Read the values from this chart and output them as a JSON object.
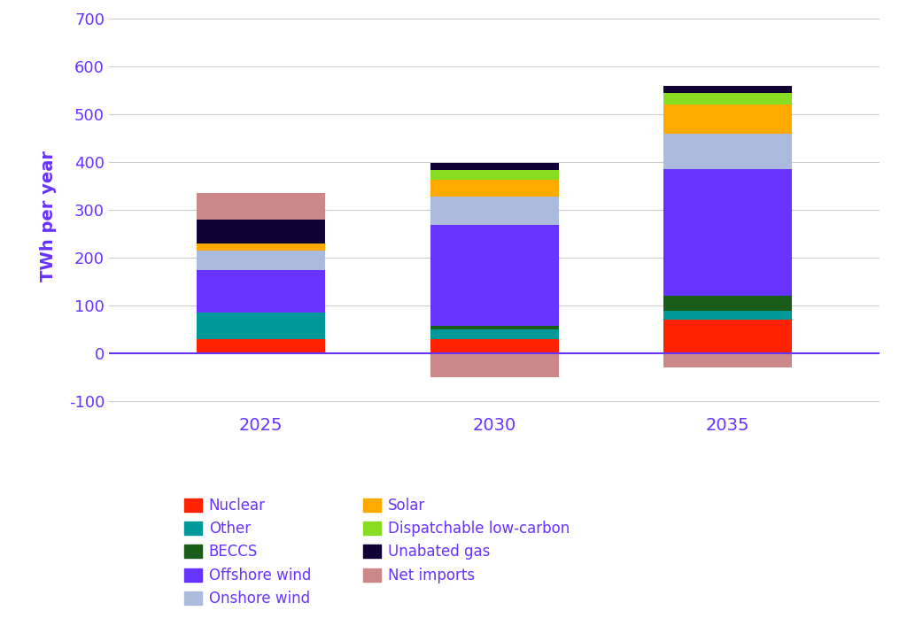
{
  "years": [
    2025,
    2030,
    2035
  ],
  "sources": [
    {
      "name": "Nuclear",
      "color": "#ff2200",
      "values": [
        30,
        30,
        70
      ]
    },
    {
      "name": "Other",
      "color": "#009999",
      "values": [
        55,
        20,
        20
      ]
    },
    {
      "name": "BECCS",
      "color": "#1a5c1a",
      "values": [
        0,
        8,
        30
      ]
    },
    {
      "name": "Offshore wind",
      "color": "#6633ff",
      "values": [
        90,
        210,
        265
      ]
    },
    {
      "name": "Onshore wind",
      "color": "#aabbdd",
      "values": [
        40,
        60,
        75
      ]
    },
    {
      "name": "Solar",
      "color": "#ffaa00",
      "values": [
        15,
        35,
        60
      ]
    },
    {
      "name": "Dispatchable low-carbon",
      "color": "#88dd22",
      "values": [
        0,
        20,
        25
      ]
    },
    {
      "name": "Unabated gas",
      "color": "#110033",
      "values": [
        50,
        15,
        15
      ]
    },
    {
      "name": "Net imports positive",
      "color": "#cc8888",
      "values": [
        55,
        0,
        0
      ]
    }
  ],
  "negative_sources": [
    {
      "name": "Net imports",
      "color": "#cc8888",
      "values": [
        0,
        -50,
        -30
      ]
    }
  ],
  "ylabel": "TWh per year",
  "ylim": [
    -125,
    700
  ],
  "yticks": [
    -100,
    0,
    100,
    200,
    300,
    400,
    500,
    600,
    700
  ],
  "background_color": "#ffffff",
  "axis_color": "#6633ff",
  "text_color": "#6633ff",
  "bar_width": 0.55,
  "legend_order": [
    "Nuclear",
    "Other",
    "BECCS",
    "Offshore wind",
    "Onshore wind",
    "Solar",
    "Dispatchable low-carbon",
    "Unabated gas",
    "Net imports"
  ],
  "legend_colors": {
    "Nuclear": "#ff2200",
    "Other": "#009999",
    "BECCS": "#1a5c1a",
    "Offshore wind": "#6633ff",
    "Onshore wind": "#aabbdd",
    "Solar": "#ffaa00",
    "Dispatchable low-carbon": "#88dd22",
    "Unabated gas": "#110033",
    "Net imports": "#cc8888"
  }
}
